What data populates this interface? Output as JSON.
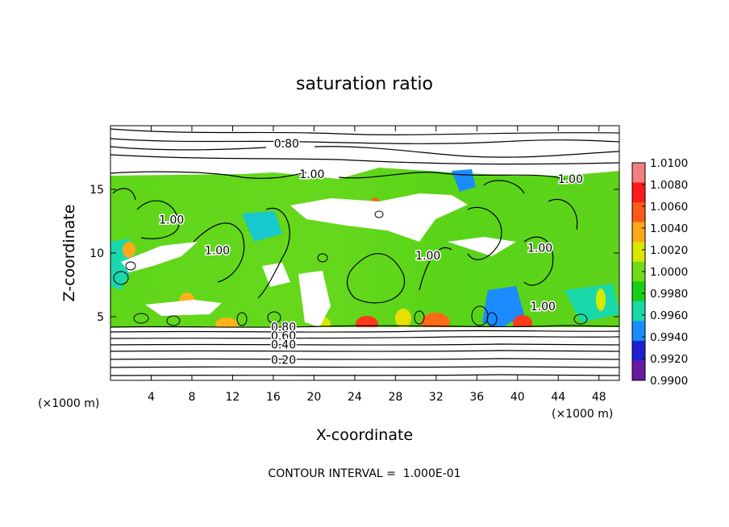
{
  "chart_data": {
    "type": "heatmap",
    "title": "saturation ratio",
    "xlabel": "X-coordinate",
    "ylabel": "Z-coordinate",
    "x_unit_left": "(×1000 m)",
    "x_unit_right": "(×1000 m)",
    "footer": "CONTOUR INTERVAL =  1.000E-01",
    "xlim": [
      0,
      50
    ],
    "ylim": [
      0,
      20
    ],
    "x_ticks": [
      "4",
      "8",
      "12",
      "16",
      "20",
      "24",
      "28",
      "32",
      "36",
      "40",
      "44",
      "48"
    ],
    "y_ticks": [
      "5",
      "10",
      "15"
    ],
    "contour_labels": [
      {
        "text": "0.80",
        "x": 17.3,
        "z": 18.3
      },
      {
        "text": "1.00",
        "x": 19.8,
        "z": 15.9
      },
      {
        "text": "1.00",
        "x": 45.2,
        "z": 15.5
      },
      {
        "text": "1.00",
        "x": 6.0,
        "z": 12.3
      },
      {
        "text": "1.00",
        "x": 10.5,
        "z": 9.9
      },
      {
        "text": "1.00",
        "x": 31.2,
        "z": 9.5
      },
      {
        "text": "1.00",
        "x": 42.2,
        "z": 10.1
      },
      {
        "text": "1.00",
        "x": 42.5,
        "z": 5.5
      },
      {
        "text": "0.80",
        "x": 17.0,
        "z": 3.9
      },
      {
        "text": "0.60",
        "x": 17.0,
        "z": 3.2
      },
      {
        "text": "0.40",
        "x": 17.0,
        "z": 2.5
      },
      {
        "text": "0.20",
        "x": 17.0,
        "z": 1.3
      }
    ],
    "colorbar": {
      "labels": [
        "1.0100",
        "1.0080",
        "1.0060",
        "1.0040",
        "1.0020",
        "1.0000",
        "0.9980",
        "0.9960",
        "0.9940",
        "0.9920",
        "0.9900"
      ],
      "colors": [
        "#f08080",
        "#ff1a1a",
        "#ff5a1a",
        "#ffa81a",
        "#d8e800",
        "#6fdc1a",
        "#18cf18",
        "#1ad9a8",
        "#1a8cff",
        "#2020d0",
        "#6a1a9c"
      ]
    }
  }
}
